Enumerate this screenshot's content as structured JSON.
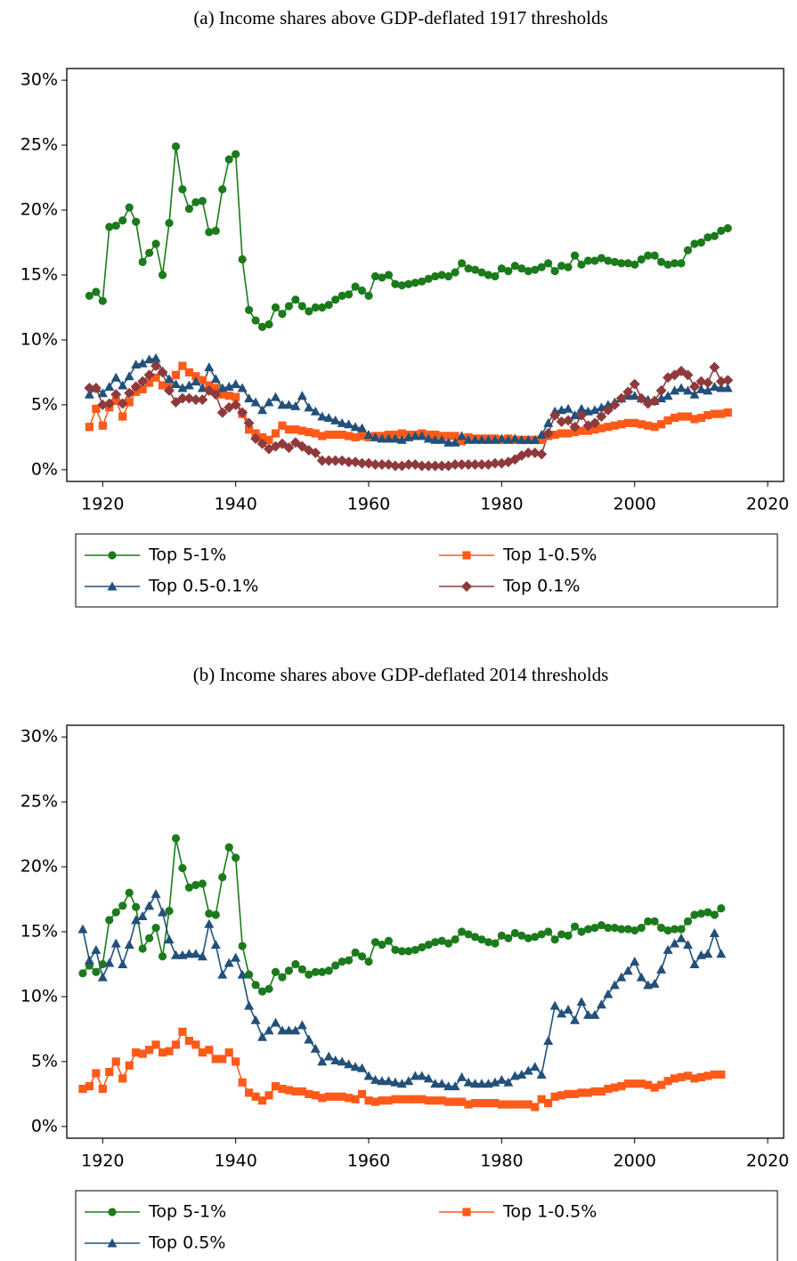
{
  "chart_data": [
    {
      "type": "line",
      "title": "(a) Income shares above GDP-deflated 1917 thresholds",
      "x": [
        1918,
        1919,
        1920,
        1921,
        1922,
        1923,
        1924,
        1925,
        1926,
        1927,
        1928,
        1929,
        1930,
        1931,
        1932,
        1933,
        1934,
        1935,
        1936,
        1937,
        1938,
        1939,
        1940,
        1941,
        1942,
        1943,
        1944,
        1945,
        1946,
        1947,
        1948,
        1949,
        1950,
        1951,
        1952,
        1953,
        1954,
        1955,
        1956,
        1957,
        1958,
        1959,
        1960,
        1961,
        1962,
        1963,
        1964,
        1965,
        1966,
        1967,
        1968,
        1969,
        1970,
        1971,
        1972,
        1973,
        1974,
        1975,
        1976,
        1977,
        1978,
        1979,
        1980,
        1981,
        1982,
        1983,
        1984,
        1985,
        1986,
        1987,
        1988,
        1989,
        1990,
        1991,
        1992,
        1993,
        1994,
        1995,
        1996,
        1997,
        1998,
        1999,
        2000,
        2001,
        2002,
        2003,
        2004,
        2005,
        2006,
        2007,
        2008,
        2009,
        2010,
        2011,
        2012,
        2013,
        2014
      ],
      "series": [
        {
          "name": "Top 5-1%",
          "color": "#1b7a1b",
          "marker": "circle",
          "values": [
            13.4,
            13.7,
            13.0,
            18.7,
            18.8,
            19.2,
            20.2,
            19.1,
            16.0,
            16.7,
            17.4,
            15.0,
            19.0,
            24.9,
            21.6,
            20.1,
            20.6,
            20.7,
            18.3,
            18.4,
            21.6,
            23.9,
            24.3,
            16.2,
            12.3,
            11.5,
            11.0,
            11.2,
            12.5,
            12.0,
            12.6,
            13.1,
            12.6,
            12.2,
            12.5,
            12.5,
            12.7,
            13.1,
            13.4,
            13.5,
            14.1,
            13.8,
            13.4,
            14.9,
            14.8,
            15.0,
            14.3,
            14.2,
            14.3,
            14.4,
            14.5,
            14.7,
            14.9,
            15.0,
            14.9,
            15.2,
            15.9,
            15.5,
            15.4,
            15.2,
            15.0,
            14.9,
            15.5,
            15.3,
            15.7,
            15.5,
            15.3,
            15.4,
            15.6,
            15.9,
            15.3,
            15.7,
            15.6,
            16.5,
            15.8,
            16.1,
            16.1,
            16.3,
            16.1,
            16.0,
            15.9,
            15.9,
            15.8,
            16.2,
            16.5,
            16.5,
            16.0,
            15.8,
            15.9,
            15.9,
            16.9,
            17.4,
            17.5,
            17.9,
            18.0,
            18.4,
            18.6
          ]
        },
        {
          "name": "Top 1-0.5%",
          "color": "#ff5a1a",
          "marker": "square",
          "values": [
            3.3,
            4.7,
            3.4,
            4.8,
            5.3,
            4.1,
            5.2,
            6.0,
            6.2,
            6.7,
            7.1,
            6.5,
            6.6,
            7.3,
            8.0,
            7.5,
            7.2,
            6.9,
            6.5,
            6.3,
            5.8,
            5.7,
            5.6,
            4.3,
            3.1,
            2.8,
            2.5,
            2.3,
            2.8,
            3.4,
            3.1,
            3.1,
            3.0,
            2.9,
            2.8,
            2.6,
            2.7,
            2.7,
            2.7,
            2.6,
            2.5,
            2.6,
            2.5,
            2.6,
            2.6,
            2.7,
            2.7,
            2.8,
            2.7,
            2.7,
            2.8,
            2.7,
            2.7,
            2.6,
            2.6,
            2.6,
            2.2,
            2.5,
            2.4,
            2.4,
            2.4,
            2.4,
            2.3,
            2.4,
            2.3,
            2.3,
            2.3,
            2.3,
            2.3,
            2.6,
            2.7,
            2.8,
            2.8,
            2.9,
            3.0,
            3.0,
            3.1,
            3.2,
            3.3,
            3.4,
            3.5,
            3.6,
            3.6,
            3.5,
            3.4,
            3.3,
            3.5,
            3.8,
            4.0,
            4.1,
            4.1,
            3.9,
            4.0,
            4.2,
            4.3,
            4.3,
            4.4
          ]
        },
        {
          "name": "Top 0.5-0.1%",
          "color": "#22507a",
          "marker": "triangle",
          "values": [
            5.8,
            6.3,
            5.9,
            6.4,
            7.1,
            6.5,
            7.2,
            8.1,
            8.2,
            8.5,
            8.6,
            7.6,
            7.0,
            6.6,
            6.3,
            6.5,
            6.8,
            6.3,
            7.9,
            7.0,
            6.3,
            6.4,
            6.6,
            6.3,
            5.5,
            5.2,
            4.6,
            5.2,
            5.6,
            5.0,
            5.0,
            4.9,
            5.7,
            4.8,
            4.5,
            4.1,
            4.0,
            3.8,
            3.6,
            3.5,
            3.3,
            3.2,
            2.7,
            2.5,
            2.4,
            2.4,
            2.4,
            2.3,
            2.5,
            2.6,
            2.6,
            2.4,
            2.3,
            2.3,
            2.1,
            2.1,
            2.6,
            2.3,
            2.3,
            2.3,
            2.3,
            2.3,
            2.4,
            2.3,
            2.4,
            2.3,
            2.3,
            2.3,
            2.7,
            3.6,
            4.5,
            4.6,
            4.7,
            4.2,
            4.7,
            4.5,
            4.6,
            4.8,
            5.0,
            5.2,
            5.5,
            5.7,
            5.7,
            5.5,
            5.4,
            5.3,
            5.5,
            5.7,
            6.1,
            6.3,
            6.1,
            5.8,
            6.2,
            6.1,
            6.4,
            6.3,
            6.3
          ]
        },
        {
          "name": "Top 0.1%",
          "color": "#8e3a3c",
          "marker": "diamond",
          "values": [
            6.3,
            6.3,
            5.0,
            5.1,
            5.8,
            5.1,
            5.9,
            6.4,
            6.8,
            7.3,
            8.0,
            7.5,
            6.1,
            5.2,
            5.5,
            5.5,
            5.4,
            5.4,
            6.1,
            5.8,
            4.4,
            4.8,
            5.0,
            4.4,
            3.6,
            2.4,
            2.0,
            1.6,
            1.8,
            2.0,
            1.7,
            2.1,
            1.8,
            1.5,
            1.3,
            0.7,
            0.7,
            0.7,
            0.7,
            0.6,
            0.6,
            0.5,
            0.5,
            0.4,
            0.4,
            0.4,
            0.3,
            0.3,
            0.4,
            0.4,
            0.3,
            0.3,
            0.3,
            0.3,
            0.3,
            0.4,
            0.4,
            0.4,
            0.4,
            0.4,
            0.4,
            0.5,
            0.5,
            0.6,
            0.8,
            1.1,
            1.3,
            1.3,
            1.2,
            2.8,
            4.2,
            3.7,
            3.8,
            3.3,
            4.2,
            3.4,
            3.6,
            4.1,
            4.6,
            5.0,
            5.5,
            6.0,
            6.6,
            5.5,
            5.1,
            5.3,
            6.1,
            7.1,
            7.3,
            7.6,
            7.3,
            6.4,
            6.8,
            6.7,
            7.9,
            6.8,
            6.9
          ]
        }
      ],
      "xlim": [
        1914.6,
        2022.4
      ],
      "xticks": [
        1920,
        1940,
        1960,
        1980,
        2000,
        2020
      ],
      "ylim": [
        -0.9,
        30.9
      ],
      "yticks": [
        {
          "value": 0,
          "label": "0%"
        },
        {
          "value": 5,
          "label": "5%"
        },
        {
          "value": 10,
          "label": "10%"
        },
        {
          "value": 15,
          "label": "15%"
        },
        {
          "value": 20,
          "label": "20%"
        },
        {
          "value": 25,
          "label": "25%"
        },
        {
          "value": 30,
          "label": "30%"
        }
      ]
    },
    {
      "type": "line",
      "title": "(b) Income shares above GDP-deflated 2014 thresholds",
      "x": [
        1917,
        1918,
        1919,
        1920,
        1921,
        1922,
        1923,
        1924,
        1925,
        1926,
        1927,
        1928,
        1929,
        1930,
        1931,
        1932,
        1933,
        1934,
        1935,
        1936,
        1937,
        1938,
        1939,
        1940,
        1941,
        1942,
        1943,
        1944,
        1945,
        1946,
        1947,
        1948,
        1949,
        1950,
        1951,
        1952,
        1953,
        1954,
        1955,
        1956,
        1957,
        1958,
        1959,
        1960,
        1961,
        1962,
        1963,
        1964,
        1965,
        1966,
        1967,
        1968,
        1969,
        1970,
        1971,
        1972,
        1973,
        1974,
        1975,
        1976,
        1977,
        1978,
        1979,
        1980,
        1981,
        1982,
        1983,
        1984,
        1985,
        1986,
        1987,
        1988,
        1989,
        1990,
        1991,
        1992,
        1993,
        1994,
        1995,
        1996,
        1997,
        1998,
        1999,
        2000,
        2001,
        2002,
        2003,
        2004,
        2005,
        2006,
        2007,
        2008,
        2009,
        2010,
        2011,
        2012,
        2013
      ],
      "series": [
        {
          "name": "Top 5-1%",
          "color": "#1b7a1b",
          "marker": "circle",
          "values": [
            11.8,
            12.4,
            11.9,
            12.5,
            15.9,
            16.5,
            17.0,
            18.0,
            16.9,
            13.7,
            14.5,
            15.3,
            13.1,
            16.6,
            22.2,
            19.9,
            18.4,
            18.6,
            18.7,
            16.4,
            16.3,
            19.2,
            21.5,
            20.7,
            13.9,
            11.7,
            10.9,
            10.4,
            10.6,
            11.9,
            11.5,
            12.0,
            12.5,
            12.1,
            11.7,
            11.9,
            11.9,
            12.0,
            12.4,
            12.7,
            12.8,
            13.4,
            13.1,
            12.7,
            14.2,
            14.0,
            14.3,
            13.6,
            13.5,
            13.5,
            13.6,
            13.8,
            14.0,
            14.2,
            14.3,
            14.1,
            14.4,
            15.0,
            14.8,
            14.6,
            14.4,
            14.2,
            14.1,
            14.7,
            14.5,
            14.9,
            14.7,
            14.5,
            14.6,
            14.8,
            15.0,
            14.4,
            14.8,
            14.7,
            15.4,
            15.0,
            15.2,
            15.3,
            15.5,
            15.3,
            15.3,
            15.2,
            15.2,
            15.1,
            15.3,
            15.8,
            15.8,
            15.3,
            15.1,
            15.2,
            15.2,
            15.8,
            16.3,
            16.4,
            16.5,
            16.3,
            16.8
          ]
        },
        {
          "name": "Top 1-0.5%",
          "color": "#ff5a1a",
          "marker": "square",
          "values": [
            2.9,
            3.1,
            4.1,
            2.9,
            4.2,
            5.0,
            3.7,
            4.7,
            5.7,
            5.6,
            5.9,
            6.3,
            5.7,
            5.8,
            6.3,
            7.3,
            6.6,
            6.3,
            5.7,
            5.9,
            5.2,
            5.2,
            5.7,
            5.0,
            3.4,
            2.6,
            2.3,
            2.0,
            2.4,
            3.1,
            2.9,
            2.8,
            2.7,
            2.7,
            2.5,
            2.4,
            2.2,
            2.3,
            2.3,
            2.3,
            2.2,
            2.1,
            2.5,
            2.0,
            1.9,
            2.0,
            2.0,
            2.1,
            2.1,
            2.1,
            2.1,
            2.1,
            2.0,
            2.0,
            2.0,
            1.9,
            1.9,
            1.9,
            1.7,
            1.8,
            1.8,
            1.8,
            1.8,
            1.7,
            1.7,
            1.7,
            1.7,
            1.7,
            1.5,
            2.1,
            1.8,
            2.3,
            2.4,
            2.5,
            2.5,
            2.6,
            2.6,
            2.7,
            2.7,
            2.9,
            3.0,
            3.1,
            3.3,
            3.3,
            3.3,
            3.2,
            3.0,
            3.2,
            3.5,
            3.7,
            3.8,
            3.9,
            3.7,
            3.8,
            3.9,
            4.0,
            4.0
          ]
        },
        {
          "name": "Top 0.5%",
          "color": "#22507a",
          "marker": "triangle",
          "values": [
            15.2,
            12.8,
            13.6,
            11.5,
            12.6,
            14.1,
            12.5,
            14.0,
            15.9,
            16.2,
            17.0,
            17.9,
            16.5,
            14.4,
            13.2,
            13.2,
            13.3,
            13.3,
            13.1,
            15.6,
            14.0,
            11.7,
            12.6,
            13.0,
            11.7,
            9.3,
            8.2,
            6.9,
            7.4,
            8.0,
            7.4,
            7.4,
            7.4,
            7.8,
            6.7,
            6.0,
            5.0,
            5.4,
            5.1,
            5.0,
            4.8,
            4.6,
            4.5,
            3.9,
            3.6,
            3.5,
            3.5,
            3.4,
            3.3,
            3.5,
            3.9,
            3.9,
            3.7,
            3.3,
            3.3,
            3.1,
            3.1,
            3.8,
            3.4,
            3.3,
            3.3,
            3.3,
            3.4,
            3.6,
            3.4,
            3.9,
            4.0,
            4.3,
            4.6,
            4.0,
            6.6,
            9.3,
            8.7,
            9.0,
            8.2,
            9.6,
            8.6,
            8.6,
            9.4,
            10.2,
            10.9,
            11.5,
            12.0,
            12.7,
            11.5,
            10.9,
            11.0,
            12.1,
            13.6,
            14.1,
            14.5,
            14.0,
            12.5,
            13.2,
            13.3,
            14.9,
            13.3
          ]
        }
      ],
      "xlim": [
        1914.6,
        2022.4
      ],
      "xticks": [
        1920,
        1940,
        1960,
        1980,
        2000,
        2020
      ],
      "ylim": [
        -0.9,
        30.9
      ],
      "yticks": [
        {
          "value": 0,
          "label": "0%"
        },
        {
          "value": 5,
          "label": "5%"
        },
        {
          "value": 10,
          "label": "10%"
        },
        {
          "value": 15,
          "label": "15%"
        },
        {
          "value": 20,
          "label": "20%"
        },
        {
          "value": 25,
          "label": "25%"
        },
        {
          "value": 30,
          "label": "30%"
        }
      ]
    }
  ]
}
